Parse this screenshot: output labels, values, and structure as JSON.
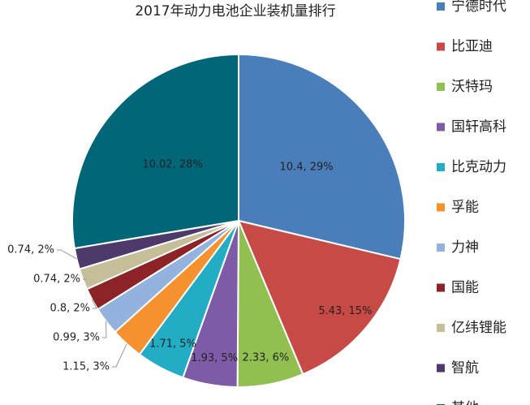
{
  "chart_data": {
    "type": "pie",
    "title": "2017年动力电池企业装机量排行",
    "categories": [
      "宁德时代",
      "比亚迪",
      "沃特玛",
      "国轩高科",
      "比克动力",
      "孚能",
      "力神",
      "国能",
      "亿纬锂能",
      "智航",
      "其他"
    ],
    "values": [
      10.4,
      5.43,
      2.33,
      1.93,
      1.71,
      1.15,
      0.99,
      0.8,
      0.74,
      0.74,
      10.02
    ],
    "value_labels": [
      "10.4, 29%",
      "5.43, 15%",
      "2.33, 6%",
      "1.93, 5%",
      "1.71, 5%",
      "1.15, 3%",
      "0.99, 3%",
      "0.8, 2%",
      "0.74, 2%",
      "0.74, 2%",
      "10.02, 28%"
    ],
    "colors": [
      "#4a7ebb",
      "#c84a47",
      "#92c050",
      "#7d5ba6",
      "#23adc5",
      "#f5922f",
      "#93b2dd",
      "#8b2327",
      "#c5be98",
      "#4d3a6b",
      "#006678"
    ],
    "legend": "right"
  }
}
